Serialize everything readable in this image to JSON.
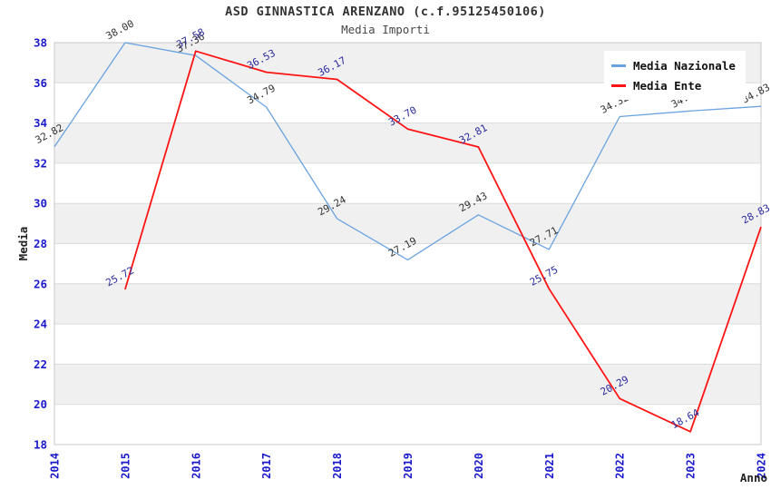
{
  "title": "ASD GINNASTICA ARENZANO (c.f.95125450106)",
  "subtitle": "Media Importi",
  "legend": {
    "position": "top-right",
    "items": [
      {
        "label": "Media Nazionale",
        "color": "#6ba3e0"
      },
      {
        "label": "Media Ente",
        "color": "#ff1414"
      }
    ]
  },
  "chart_data": {
    "type": "line",
    "x": [
      2014,
      2015,
      2016,
      2017,
      2018,
      2019,
      2020,
      2021,
      2022,
      2023,
      2024
    ],
    "x_tick_labels": [
      "2014",
      "2015",
      "2016",
      "2017",
      "2018",
      "2019",
      "2020",
      "2021",
      "2022",
      "2023",
      "2024"
    ],
    "series": [
      {
        "name": "Media Nazionale",
        "color": "#6ba3e0",
        "label_color": "#333333",
        "line_width": 1.3,
        "values": [
          32.82,
          38.0,
          37.36,
          34.79,
          29.24,
          27.19,
          29.43,
          27.71,
          34.32,
          34.6,
          34.83
        ],
        "labels": [
          "32.82",
          "38.00",
          "37.36",
          "34.79",
          "29.24",
          "27.19",
          "29.43",
          "27.71",
          "34.32",
          "34.60",
          "34.83"
        ]
      },
      {
        "name": "Media Ente",
        "color": "#ff1414",
        "label_color": "#2a2a9e",
        "line_width": 1.8,
        "values": [
          null,
          25.72,
          37.58,
          36.53,
          36.17,
          33.7,
          32.81,
          25.75,
          20.29,
          18.64,
          28.83
        ],
        "labels": [
          null,
          "25.72",
          "37.58",
          "36.53",
          "36.17",
          "33.70",
          "32.81",
          "25.75",
          "20.29",
          "18.64",
          "28.83"
        ]
      }
    ],
    "xlabel": "Anno",
    "ylabel": "Media",
    "ylim": [
      18,
      38
    ],
    "y_tick_step": 2,
    "grid": true,
    "legend_position": "top-right",
    "band_color": "#f0f0f0",
    "tick_color": "#1a1acc",
    "axis_title_color": "#222222",
    "grid_color": "#dcdcdc",
    "border_color": "#c8c8c8",
    "data_label_rotation_deg": -28,
    "x_tick_rotation_deg": -90
  }
}
